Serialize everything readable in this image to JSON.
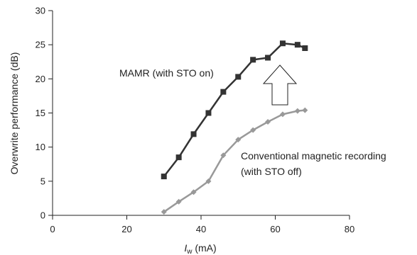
{
  "chart_data": {
    "type": "line",
    "xlabel": {
      "var": "I",
      "sub": "w",
      "unit": " (mA)"
    },
    "ylabel": "Overwrite performance (dB)",
    "xlim": [
      0,
      80
    ],
    "ylim": [
      0,
      30
    ],
    "xticks": [
      0,
      20,
      40,
      60,
      80
    ],
    "yticks": [
      0,
      5,
      10,
      15,
      20,
      25,
      30
    ],
    "grid": false,
    "legend": "none",
    "series": [
      {
        "name": "MAMR (with STO on)",
        "marker": "square",
        "color": "#333333",
        "x": [
          30,
          34,
          38,
          42,
          46,
          50,
          54,
          58,
          62,
          66,
          68
        ],
        "y": [
          5.7,
          8.5,
          11.9,
          15.0,
          18.1,
          20.3,
          22.8,
          23.1,
          25.2,
          25.0,
          24.5
        ]
      },
      {
        "name": "Conventional magnetic recording (with STO off)",
        "marker": "diamond",
        "color": "#999999",
        "x": [
          30,
          34,
          38,
          42,
          46,
          50,
          54,
          58,
          62,
          66,
          68
        ],
        "y": [
          0.5,
          2.0,
          3.4,
          5.0,
          8.8,
          11.1,
          12.5,
          13.7,
          14.8,
          15.3,
          15.4
        ]
      }
    ],
    "annotations": {
      "mamr_label": "MAMR (with STO on)",
      "conv_line1": "Conventional magnetic recording",
      "conv_line2": "(with STO off)",
      "arrow_direction": "up"
    }
  }
}
